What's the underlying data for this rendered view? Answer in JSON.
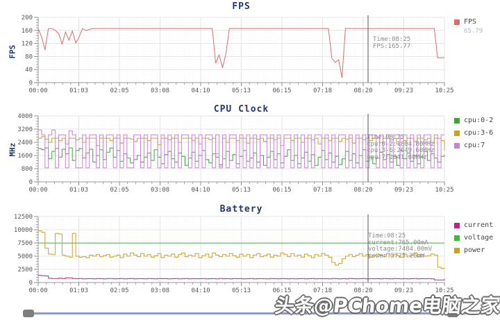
{
  "cursor": {
    "time": "08:25",
    "fraction": 0.812
  },
  "watermark": "头条@PChome电脑之家",
  "chart_data": [
    {
      "type": "line",
      "id": "fps",
      "title": "FPS",
      "ylabel": "FPS",
      "ylim": [
        0,
        200
      ],
      "yticks": [
        0,
        40,
        80,
        120,
        160,
        200
      ],
      "xticks": [
        "00:00",
        "01:03",
        "02:05",
        "03:08",
        "04:10",
        "05:13",
        "06:15",
        "07:18",
        "08:20",
        "09:23",
        "10:25"
      ],
      "grid": true,
      "legend_position": "right",
      "legend": [
        {
          "label": "FPS",
          "sublabel": "65.79",
          "color": "#dd6b6b"
        }
      ],
      "tooltip": [
        "Time:08:25",
        "FPS:165.77"
      ],
      "series": [
        {
          "name": "FPS",
          "color": "#dd6b6b",
          "step": false,
          "values": [
            165.8,
            140,
            100,
            165.8,
            165.8,
            160,
            150,
            118,
            155,
            130,
            158,
            122,
            140,
            165.8,
            160,
            163,
            165.8,
            165.8,
            165.8,
            165.8,
            165.8,
            165.8,
            165.8,
            165.8,
            165.8,
            165.8,
            165.8,
            165.8,
            165.8,
            165.8,
            165.8,
            165.8,
            165.8,
            165.8,
            165.8,
            165.8,
            165.8,
            165.8,
            165.8,
            165.8,
            165.8,
            165.8,
            165.8,
            165.8,
            165.8,
            165.8,
            165.8,
            165.8,
            165.8,
            165.8,
            165.8,
            165.8,
            60,
            85,
            45,
            90,
            165.8,
            165.8,
            165.8,
            165.8,
            165.8,
            165.8,
            165.8,
            165.8,
            165.8,
            165.8,
            165.8,
            165.8,
            165.8,
            165.8,
            165.8,
            165.8,
            165.8,
            165.8,
            165.8,
            165.8,
            165.8,
            165.8,
            165.8,
            165.8,
            165.8,
            165.8,
            165.8,
            165.8,
            165.8,
            165.8,
            75,
            62,
            70,
            15,
            165.8,
            165.8,
            165.8,
            165.8,
            165.8,
            165.8,
            165.8,
            165.8,
            165.8,
            165.8,
            165.8,
            165.8,
            165.8,
            165.8,
            165.8,
            165.8,
            165.8,
            165.8,
            165.8,
            165.8,
            165.8,
            165.8,
            165.8,
            165.8,
            165.8,
            165.8,
            165.8,
            76,
            76,
            76
          ]
        }
      ]
    },
    {
      "type": "line",
      "id": "cpu-clock",
      "title": "CPU Clock",
      "ylabel": "MHz",
      "ylim": [
        0,
        4000
      ],
      "yticks": [
        0,
        800,
        1600,
        2400,
        3200,
        4000
      ],
      "xticks": [
        "00:00",
        "01:03",
        "02:05",
        "03:08",
        "04:10",
        "05:13",
        "06:15",
        "07:18",
        "08:20",
        "09:23",
        "10:25"
      ],
      "grid": true,
      "legend_position": "right",
      "legend": [
        {
          "label": "cpu:0-2",
          "color": "#35a935"
        },
        {
          "label": "cpu:3-6",
          "color": "#c9a227"
        },
        {
          "label": "cpu:7",
          "color": "#c883d8"
        }
      ],
      "tooltip": [
        "Time:08:25",
        "cpu:0-2:1804.80MHz",
        "cpu:3-6:2649.60MHz",
        "cpu:7:2841.60MHz"
      ],
      "series": [
        {
          "name": "cpu:0-2",
          "color": "#35a935",
          "step": true,
          "values": [
            2020,
            1950,
            2060,
            1400,
            1850,
            2020,
            1500,
            1980,
            1700,
            2060,
            1300,
            1900,
            2020,
            1450,
            1750,
            1980,
            1200,
            1600,
            1950,
            1350,
            1800,
            2050,
            1500,
            1900,
            1250,
            1700,
            1450,
            1150,
            1350,
            1600,
            1200,
            1500,
            1750,
            1300,
            1950,
            1500,
            1100,
            1650,
            1850,
            1400,
            1200,
            1750,
            1550,
            1000,
            1450,
            1800,
            1250,
            1600,
            1900,
            1350,
            1150,
            1700,
            1500,
            1050,
            1400,
            1850,
            1300,
            1650,
            1100,
            1550,
            1900,
            1250,
            1450,
            1750,
            1200,
            1600,
            1000,
            1500,
            1850,
            1350,
            1700,
            1150,
            1550,
            1950,
            1300,
            1600,
            1100,
            1450,
            1800,
            1250,
            1650,
            1000,
            1500,
            1900,
            1350,
            1750,
            1200,
            1550,
            1050,
            1400,
            1850,
            1300,
            1700,
            1150,
            1600,
            1950,
            1250,
            1500,
            1100,
            1450,
            1800,
            1350,
            1650,
            1200,
            1550,
            1000,
            1900,
            1400,
            1750,
            1250,
            1600,
            1100,
            1500,
            1850,
            1300,
            1700,
            1450,
            1200,
            1550,
            1650
          ]
        },
        {
          "name": "cpu:3-6",
          "color": "#c9a227",
          "step": true,
          "values": [
            2650,
            2750,
            2600,
            2400,
            2650,
            2650,
            2500,
            2650,
            2300,
            2650,
            2650,
            2550,
            2650,
            2400,
            2650,
            2650,
            2650,
            2200,
            2650,
            2650,
            2650,
            2500,
            2650,
            2650,
            2350,
            2650,
            2650,
            2600,
            2450,
            2650,
            2650,
            2650,
            2500,
            2650,
            2650,
            2250,
            2650,
            2650,
            2550,
            2650,
            2650,
            2400,
            2650,
            2650,
            2650,
            2500,
            2650,
            2300,
            2650,
            2650,
            2550,
            2650,
            1700,
            950,
            2650,
            2400,
            2650,
            2650,
            2500,
            2650,
            2650,
            2350,
            2650,
            2650,
            2600,
            2650,
            2450,
            2650,
            2650,
            2550,
            2650,
            2200,
            2650,
            2650,
            2500,
            2650,
            2650,
            2400,
            2650,
            2650,
            2550,
            2650,
            2300,
            2650,
            2650,
            2500,
            2650,
            2650,
            2450,
            2650,
            2600,
            2650,
            2350,
            2650,
            2650,
            2550,
            2650,
            2500,
            2650,
            2650,
            2400,
            2650,
            2650,
            2550,
            2650,
            2300,
            2650,
            2500,
            2650,
            2650,
            2450,
            2650,
            2650,
            2550,
            2650,
            2400,
            2650,
            2650,
            2500,
            1900
          ]
        },
        {
          "name": "cpu:7",
          "color": "#c883d8",
          "step": true,
          "values": [
            3150,
            2850,
            850,
            2850,
            3150,
            850,
            2850,
            2850,
            850,
            3100,
            2850,
            850,
            850,
            2850,
            850,
            2850,
            2850,
            850,
            2850,
            850,
            2850,
            2850,
            850,
            2850,
            850,
            2850,
            850,
            850,
            2850,
            2850,
            850,
            2850,
            850,
            2850,
            2850,
            850,
            2850,
            850,
            2850,
            850,
            2850,
            850,
            2850,
            2850,
            850,
            2850,
            850,
            2850,
            850,
            2850,
            2850,
            850,
            2850,
            850,
            2850,
            850,
            2850,
            2850,
            850,
            2850,
            850,
            2850,
            850,
            2850,
            850,
            2850,
            2850,
            850,
            2850,
            850,
            2850,
            850,
            2850,
            2850,
            850,
            2850,
            850,
            2850,
            850,
            2850,
            850,
            2850,
            2850,
            850,
            2850,
            850,
            2850,
            850,
            2850,
            2850,
            850,
            2850,
            850,
            2850,
            850,
            2850,
            850,
            2850,
            2850,
            850,
            2850,
            850,
            2850,
            850,
            2850,
            2850,
            850,
            2850,
            850,
            2850,
            850,
            2850,
            850,
            2850,
            2850,
            850,
            2850,
            850,
            2850,
            2850
          ]
        }
      ]
    },
    {
      "type": "line",
      "id": "battery",
      "title": "Battery",
      "ylabel": "",
      "ylim": [
        0,
        12500
      ],
      "yticks": [
        0,
        2500,
        5000,
        7500,
        10000,
        12500
      ],
      "xticks": [
        "00:00",
        "01:03",
        "02:05",
        "03:08",
        "04:10",
        "05:13",
        "06:15",
        "07:18",
        "08:20",
        "09:23",
        "10:25"
      ],
      "grid": true,
      "legend_position": "right",
      "legend": [
        {
          "label": "current",
          "color": "#c0218f"
        },
        {
          "label": "voltage",
          "color": "#3cb83c"
        },
        {
          "label": "power",
          "color": "#c9a227"
        }
      ],
      "tooltip": [
        "Time:08:25",
        "current:765.00mA",
        "voltage:7484.00mV",
        "power:5725.26mW"
      ],
      "series": [
        {
          "name": "current",
          "color": "#c0218f",
          "step": true,
          "values": [
            1350,
            1300,
            1250,
            800,
            760,
            750,
            820,
            760,
            900,
            880,
            750,
            730,
            760,
            700,
            720,
            740,
            700,
            760,
            720,
            700,
            740,
            760,
            700,
            720,
            750,
            700,
            730,
            760,
            700,
            740,
            720,
            700,
            760,
            730,
            700,
            750,
            720,
            740,
            700,
            730,
            760,
            700,
            720,
            750,
            700,
            740,
            710,
            730,
            760,
            700,
            720,
            740,
            700,
            750,
            710,
            730,
            700,
            760,
            720,
            740,
            700,
            730,
            750,
            700,
            720,
            740,
            710,
            700,
            760,
            730,
            700,
            750,
            720,
            700,
            740,
            700,
            730,
            760,
            700,
            720,
            750,
            700,
            740,
            710,
            730,
            700,
            760,
            720,
            700,
            740,
            700,
            750,
            730,
            700,
            720,
            760,
            700,
            740,
            710,
            730,
            700,
            750,
            720,
            700,
            760,
            730,
            700,
            740,
            700,
            720,
            750,
            700,
            730,
            710,
            740,
            700,
            500,
            480,
            470,
            700
          ]
        },
        {
          "name": "voltage",
          "color": "#3cb83c",
          "step": false,
          "values": [
            7484,
            7484
          ]
        },
        {
          "name": "power",
          "color": "#c9a227",
          "step": true,
          "values": [
            9800,
            9500,
            6500,
            5400,
            5300,
            9300,
            9200,
            5200,
            5000,
            4800,
            9300,
            5000,
            4800,
            4900,
            4700,
            5200,
            5000,
            5300,
            4900,
            5100,
            5300,
            4800,
            5000,
            5200,
            4700,
            5400,
            5000,
            5600,
            5200,
            4900,
            5500,
            5000,
            5300,
            4800,
            5100,
            5500,
            4700,
            5200,
            5000,
            5400,
            4800,
            5300,
            5600,
            4900,
            5200,
            5000,
            5500,
            4700,
            5100,
            5400,
            4800,
            5600,
            5200,
            4900,
            5300,
            5000,
            5500,
            5100,
            4800,
            5400,
            5000,
            5300,
            4700,
            5200,
            5500,
            4900,
            5100,
            5400,
            4800,
            5200,
            5000,
            5600,
            5300,
            4900,
            5500,
            5000,
            5200,
            4800,
            5400,
            5100,
            4700,
            5300,
            5000,
            5500,
            5200,
            4800,
            3800,
            3300,
            3600,
            4500,
            5000,
            5300,
            4900,
            5200,
            5500,
            5000,
            5300,
            4800,
            5100,
            5400,
            5200,
            4900,
            5500,
            5000,
            5300,
            5100,
            4800,
            5400,
            5000,
            5200,
            5600,
            4900,
            5300,
            5000,
            5100,
            5400,
            5200,
            2900,
            2700,
            2800
          ]
        }
      ]
    }
  ]
}
